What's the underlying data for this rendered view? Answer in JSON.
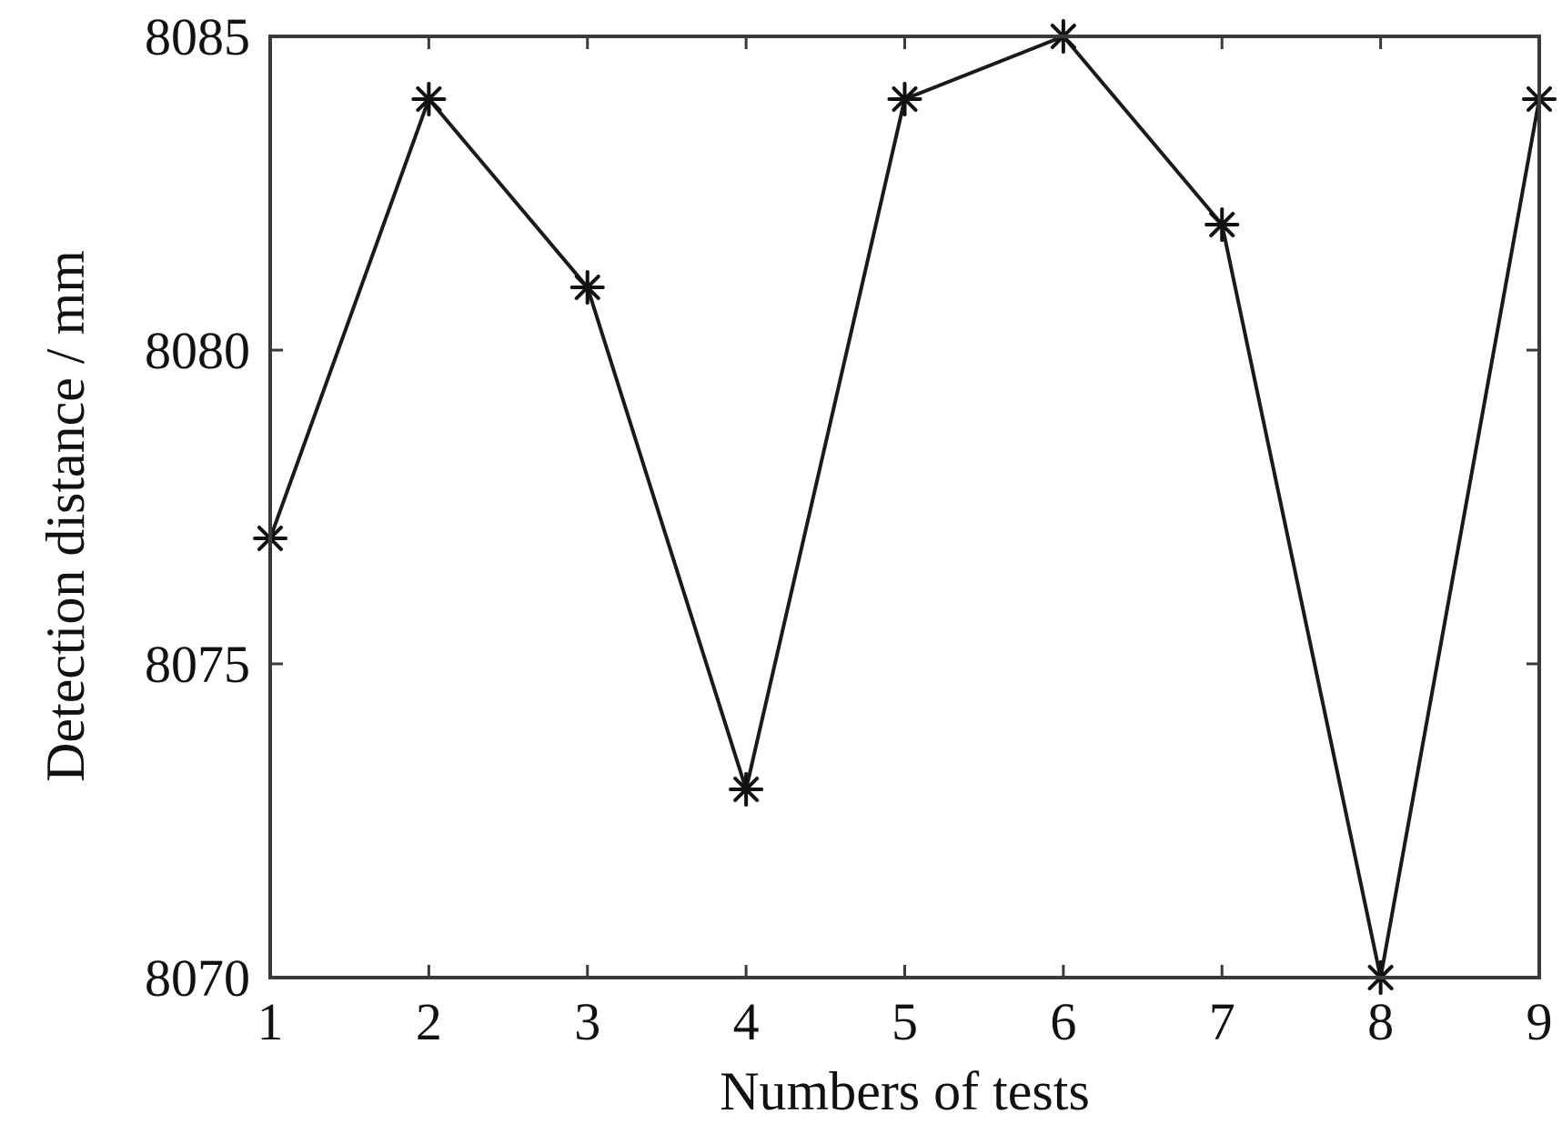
{
  "chart_data": {
    "type": "line",
    "title": "",
    "xlabel": "Numbers of tests",
    "ylabel": "Detection distance / mm",
    "x": [
      1,
      2,
      3,
      4,
      5,
      6,
      7,
      8,
      9
    ],
    "series": [
      {
        "values": [
          8077,
          8084,
          8081,
          8073,
          8084,
          8085,
          8082,
          8070,
          8084
        ],
        "marker": "asterisk",
        "color": "#1a1a1a"
      }
    ],
    "xlim": [
      1,
      9
    ],
    "ylim": [
      8070,
      8085
    ],
    "xticks": [
      "1",
      "2",
      "3",
      "4",
      "5",
      "6",
      "7",
      "8",
      "9"
    ],
    "yticks": [
      "8070",
      "8075",
      "8080",
      "8085"
    ],
    "grid": false,
    "legend": "none"
  }
}
